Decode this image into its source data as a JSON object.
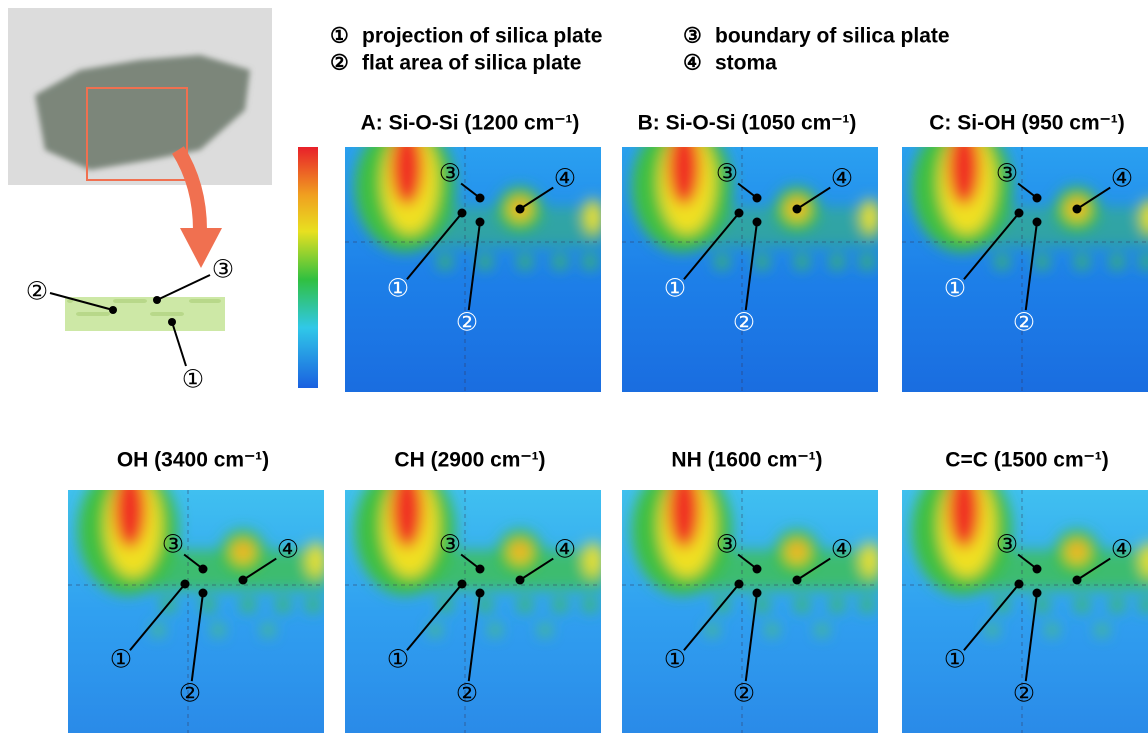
{
  "figure": {
    "markers": [
      "①",
      "②",
      "③",
      "④"
    ],
    "legend": [
      {
        "text": "projection of silica plate"
      },
      {
        "text": "flat area of silica plate"
      },
      {
        "text": "boundary of silica plate"
      },
      {
        "text": "stoma"
      }
    ],
    "panels": [
      {
        "title": "A: Si-O-Si (1200 cm⁻¹)"
      },
      {
        "title": "B: Si-O-Si (1050 cm⁻¹)"
      },
      {
        "title": "C: Si-OH (950 cm⁻¹)"
      },
      {
        "title": "OH (3400 cm⁻¹)"
      },
      {
        "title": "CH (2900 cm⁻¹)"
      },
      {
        "title": "NH (1600 cm⁻¹)"
      },
      {
        "title": "C=C (1500 cm⁻¹)"
      }
    ]
  }
}
